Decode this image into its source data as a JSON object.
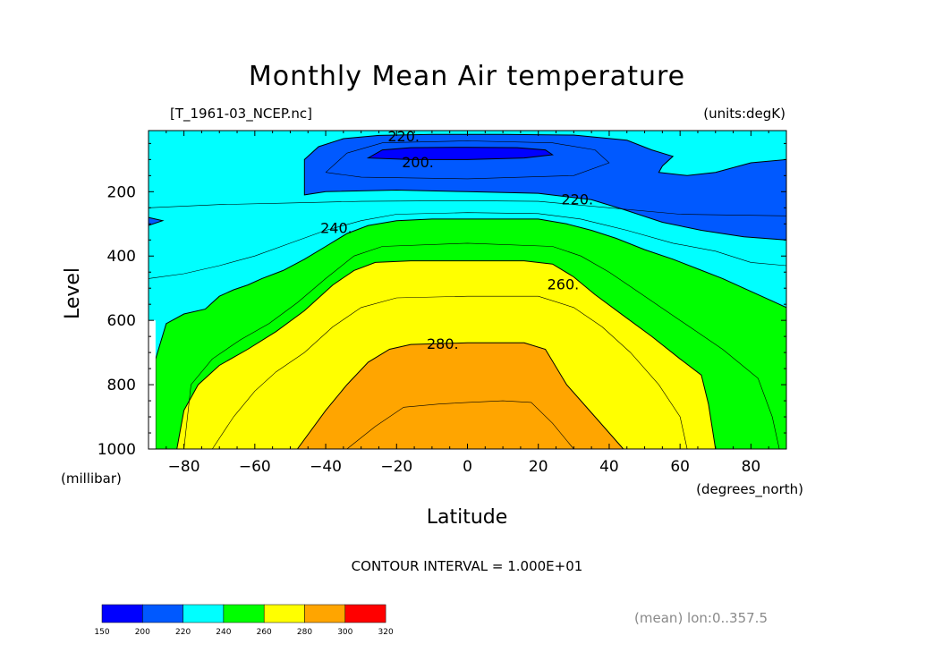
{
  "chart_data": {
    "type": "contour",
    "title": "Monthly Mean Air temperature",
    "file_label": "[T_1961-03_NCEP.nc]",
    "units_label": "(units:degK)",
    "xlabel": "Latitude",
    "x_units": "(degrees_north)",
    "ylabel": "Level",
    "y_units": "(millibar)",
    "xlim": [
      -90,
      90
    ],
    "ylim": [
      10,
      1000
    ],
    "y_inverted": true,
    "x_ticks": [
      -80,
      -60,
      -40,
      -20,
      0,
      20,
      40,
      60,
      80
    ],
    "x_tick_labels": [
      "−80",
      "−60",
      "−40",
      "−20",
      "0",
      "20",
      "40",
      "60",
      "80"
    ],
    "y_ticks": [
      200,
      400,
      600,
      800,
      1000
    ],
    "y_tick_labels": [
      "200",
      "400",
      "600",
      "800",
      "1000"
    ],
    "contour_interval": "CONTOUR INTERVAL = 1.000E+01",
    "fill_levels": [
      150,
      200,
      220,
      240,
      260,
      280,
      300,
      320
    ],
    "fill_colors": [
      "#0000ff",
      "#0059ff",
      "#00ffff",
      "#00ff00",
      "#ffff00",
      "#ffa500",
      "#ff0000"
    ],
    "contour_labels": [
      {
        "text": "220.",
        "lat": -18,
        "level": 30
      },
      {
        "text": "200.",
        "lat": -14,
        "level": 110
      },
      {
        "text": "220.",
        "lat": 31,
        "level": 225
      },
      {
        "text": "240.",
        "lat": -37,
        "level": 315
      },
      {
        "text": "260.",
        "lat": 27,
        "level": 490
      },
      {
        "text": "280.",
        "lat": -7,
        "level": 675
      }
    ],
    "regions": [
      {
        "value_range": "240-260",
        "color": "#00ff00",
        "boundary": [
          [
            -88,
            1000
          ],
          [
            -88,
            720
          ],
          [
            -85,
            610
          ],
          [
            -80,
            580
          ],
          [
            -74,
            565
          ],
          [
            -70,
            525
          ],
          [
            -66,
            505
          ],
          [
            -62,
            490
          ],
          [
            -58,
            470
          ],
          [
            -52,
            445
          ],
          [
            -46,
            410
          ],
          [
            -40,
            370
          ],
          [
            -34,
            330
          ],
          [
            -28,
            305
          ],
          [
            -20,
            290
          ],
          [
            -10,
            285
          ],
          [
            0,
            285
          ],
          [
            10,
            285
          ],
          [
            20,
            285
          ],
          [
            28,
            300
          ],
          [
            35,
            320
          ],
          [
            42,
            345
          ],
          [
            50,
            380
          ],
          [
            58,
            410
          ],
          [
            65,
            440
          ],
          [
            72,
            470
          ],
          [
            80,
            510
          ],
          [
            86,
            540
          ],
          [
            90,
            560
          ],
          [
            90,
            1000
          ]
        ]
      },
      {
        "value_range": "260-280",
        "color": "#ffff00",
        "boundary": [
          [
            -82,
            1000
          ],
          [
            -80,
            880
          ],
          [
            -76,
            800
          ],
          [
            -70,
            740
          ],
          [
            -62,
            690
          ],
          [
            -54,
            635
          ],
          [
            -46,
            570
          ],
          [
            -38,
            490
          ],
          [
            -32,
            445
          ],
          [
            -26,
            420
          ],
          [
            -16,
            415
          ],
          [
            0,
            415
          ],
          [
            16,
            415
          ],
          [
            24,
            425
          ],
          [
            30,
            465
          ],
          [
            36,
            520
          ],
          [
            44,
            585
          ],
          [
            52,
            650
          ],
          [
            60,
            720
          ],
          [
            66,
            770
          ],
          [
            68,
            860
          ],
          [
            70,
            1000
          ]
        ]
      },
      {
        "value_range": "280-300",
        "color": "#ffa500",
        "boundary": [
          [
            -48,
            1000
          ],
          [
            -40,
            880
          ],
          [
            -34,
            800
          ],
          [
            -28,
            730
          ],
          [
            -22,
            690
          ],
          [
            -16,
            675
          ],
          [
            0,
            670
          ],
          [
            16,
            670
          ],
          [
            22,
            690
          ],
          [
            28,
            800
          ],
          [
            36,
            900
          ],
          [
            44,
            1000
          ]
        ]
      },
      {
        "value_range": "220-240",
        "color": "#00ffff",
        "boundary": [
          [
            -90,
            1000
          ],
          [
            -90,
            10
          ],
          [
            90,
            10
          ],
          [
            90,
            1000
          ]
        ]
      },
      {
        "value_range": "200-220",
        "color": "#0059ff",
        "boundary": [
          [
            -46,
            210
          ],
          [
            -46,
            100
          ],
          [
            -42,
            60
          ],
          [
            -35,
            35
          ],
          [
            -25,
            25
          ],
          [
            -10,
            22
          ],
          [
            10,
            22
          ],
          [
            30,
            24
          ],
          [
            45,
            40
          ],
          [
            52,
            70
          ],
          [
            58,
            90
          ],
          [
            55,
            120
          ],
          [
            54,
            140
          ],
          [
            62,
            150
          ],
          [
            70,
            140
          ],
          [
            80,
            110
          ],
          [
            90,
            100
          ],
          [
            90,
            350
          ],
          [
            78,
            340
          ],
          [
            66,
            320
          ],
          [
            55,
            295
          ],
          [
            44,
            255
          ],
          [
            35,
            225
          ],
          [
            20,
            205
          ],
          [
            0,
            200
          ],
          [
            -20,
            195
          ],
          [
            -40,
            200
          ]
        ]
      },
      {
        "value_range": "200-220",
        "color": "#0059ff",
        "boundary": [
          [
            -90,
            280
          ],
          [
            -86,
            290
          ],
          [
            -90,
            305
          ]
        ]
      },
      {
        "value_range": "150-200",
        "color": "#0000ff",
        "boundary": [
          [
            -28,
            95
          ],
          [
            -24,
            70
          ],
          [
            -16,
            63
          ],
          [
            0,
            62
          ],
          [
            14,
            63
          ],
          [
            22,
            70
          ],
          [
            24,
            85
          ],
          [
            16,
            95
          ],
          [
            0,
            100
          ],
          [
            -16,
            100
          ]
        ]
      }
    ],
    "colorbar_tick_labels": [
      "150",
      "200",
      "220",
      "240",
      "260",
      "280",
      "300",
      "320"
    ],
    "note": "(mean) lon:0..357.5"
  }
}
